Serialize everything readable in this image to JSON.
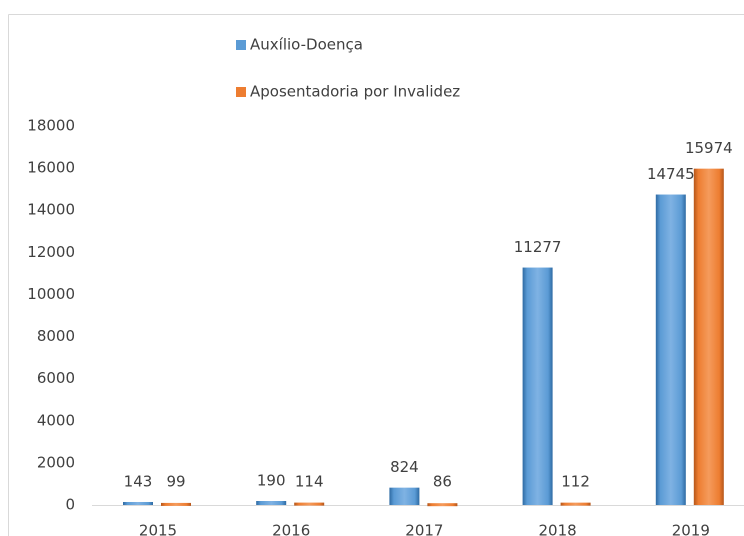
{
  "chart_data": {
    "type": "bar",
    "categories": [
      "2015",
      "2016",
      "2017",
      "2018",
      "2019"
    ],
    "series": [
      {
        "name": "Auxílio-Doença",
        "color": "#5b9bd5",
        "values": [
          143,
          190,
          824,
          11277,
          14745
        ]
      },
      {
        "name": "Aposentadoria por Invalidez",
        "color": "#ed7d31",
        "values": [
          99,
          114,
          86,
          112,
          15974
        ]
      }
    ],
    "ylim": [
      0,
      18000
    ],
    "yticks": [
      0,
      2000,
      4000,
      6000,
      8000,
      10000,
      12000,
      14000,
      16000,
      18000
    ],
    "grid": false
  }
}
